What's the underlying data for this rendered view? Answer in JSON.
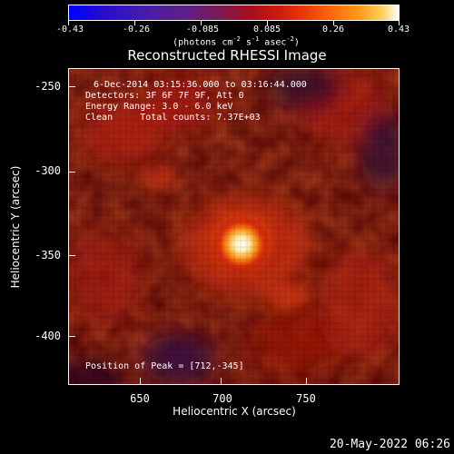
{
  "colorbar": {
    "tick_labels": [
      "-0.43",
      "-0.26",
      "-0.085",
      "0.085",
      "0.26",
      "0.43"
    ],
    "units_text": "(photons cm",
    "units_exp1": "-2",
    "units_mid": " s",
    "units_exp2": "-1",
    "units_mid2": " asec",
    "units_exp3": "-2",
    "units_end": ")"
  },
  "title": "Reconstructed RHESSI Image",
  "info": {
    "time_range": "6-Dec-2014 03:15:36.000 to 03:16:44.000",
    "detectors": "Detectors: 3F 6F 7F 9F, Att 0",
    "energy": "Energy Range: 3.0 - 6.0 keV",
    "clean": "Clean     Total counts: 7.37E+03",
    "peak": "Position of Peak = [712,-345]"
  },
  "axes": {
    "xlabel": "Heliocentric X (arcsec)",
    "ylabel": "Heliocentric Y (arcsec)",
    "xticks": [
      "650",
      "700",
      "750"
    ],
    "yticks": [
      "-250",
      "-300",
      "-350",
      "-400"
    ]
  },
  "datestamp": "20-May-2022 06:26",
  "colors": {
    "background": "#000000",
    "text": "#ffffff"
  }
}
